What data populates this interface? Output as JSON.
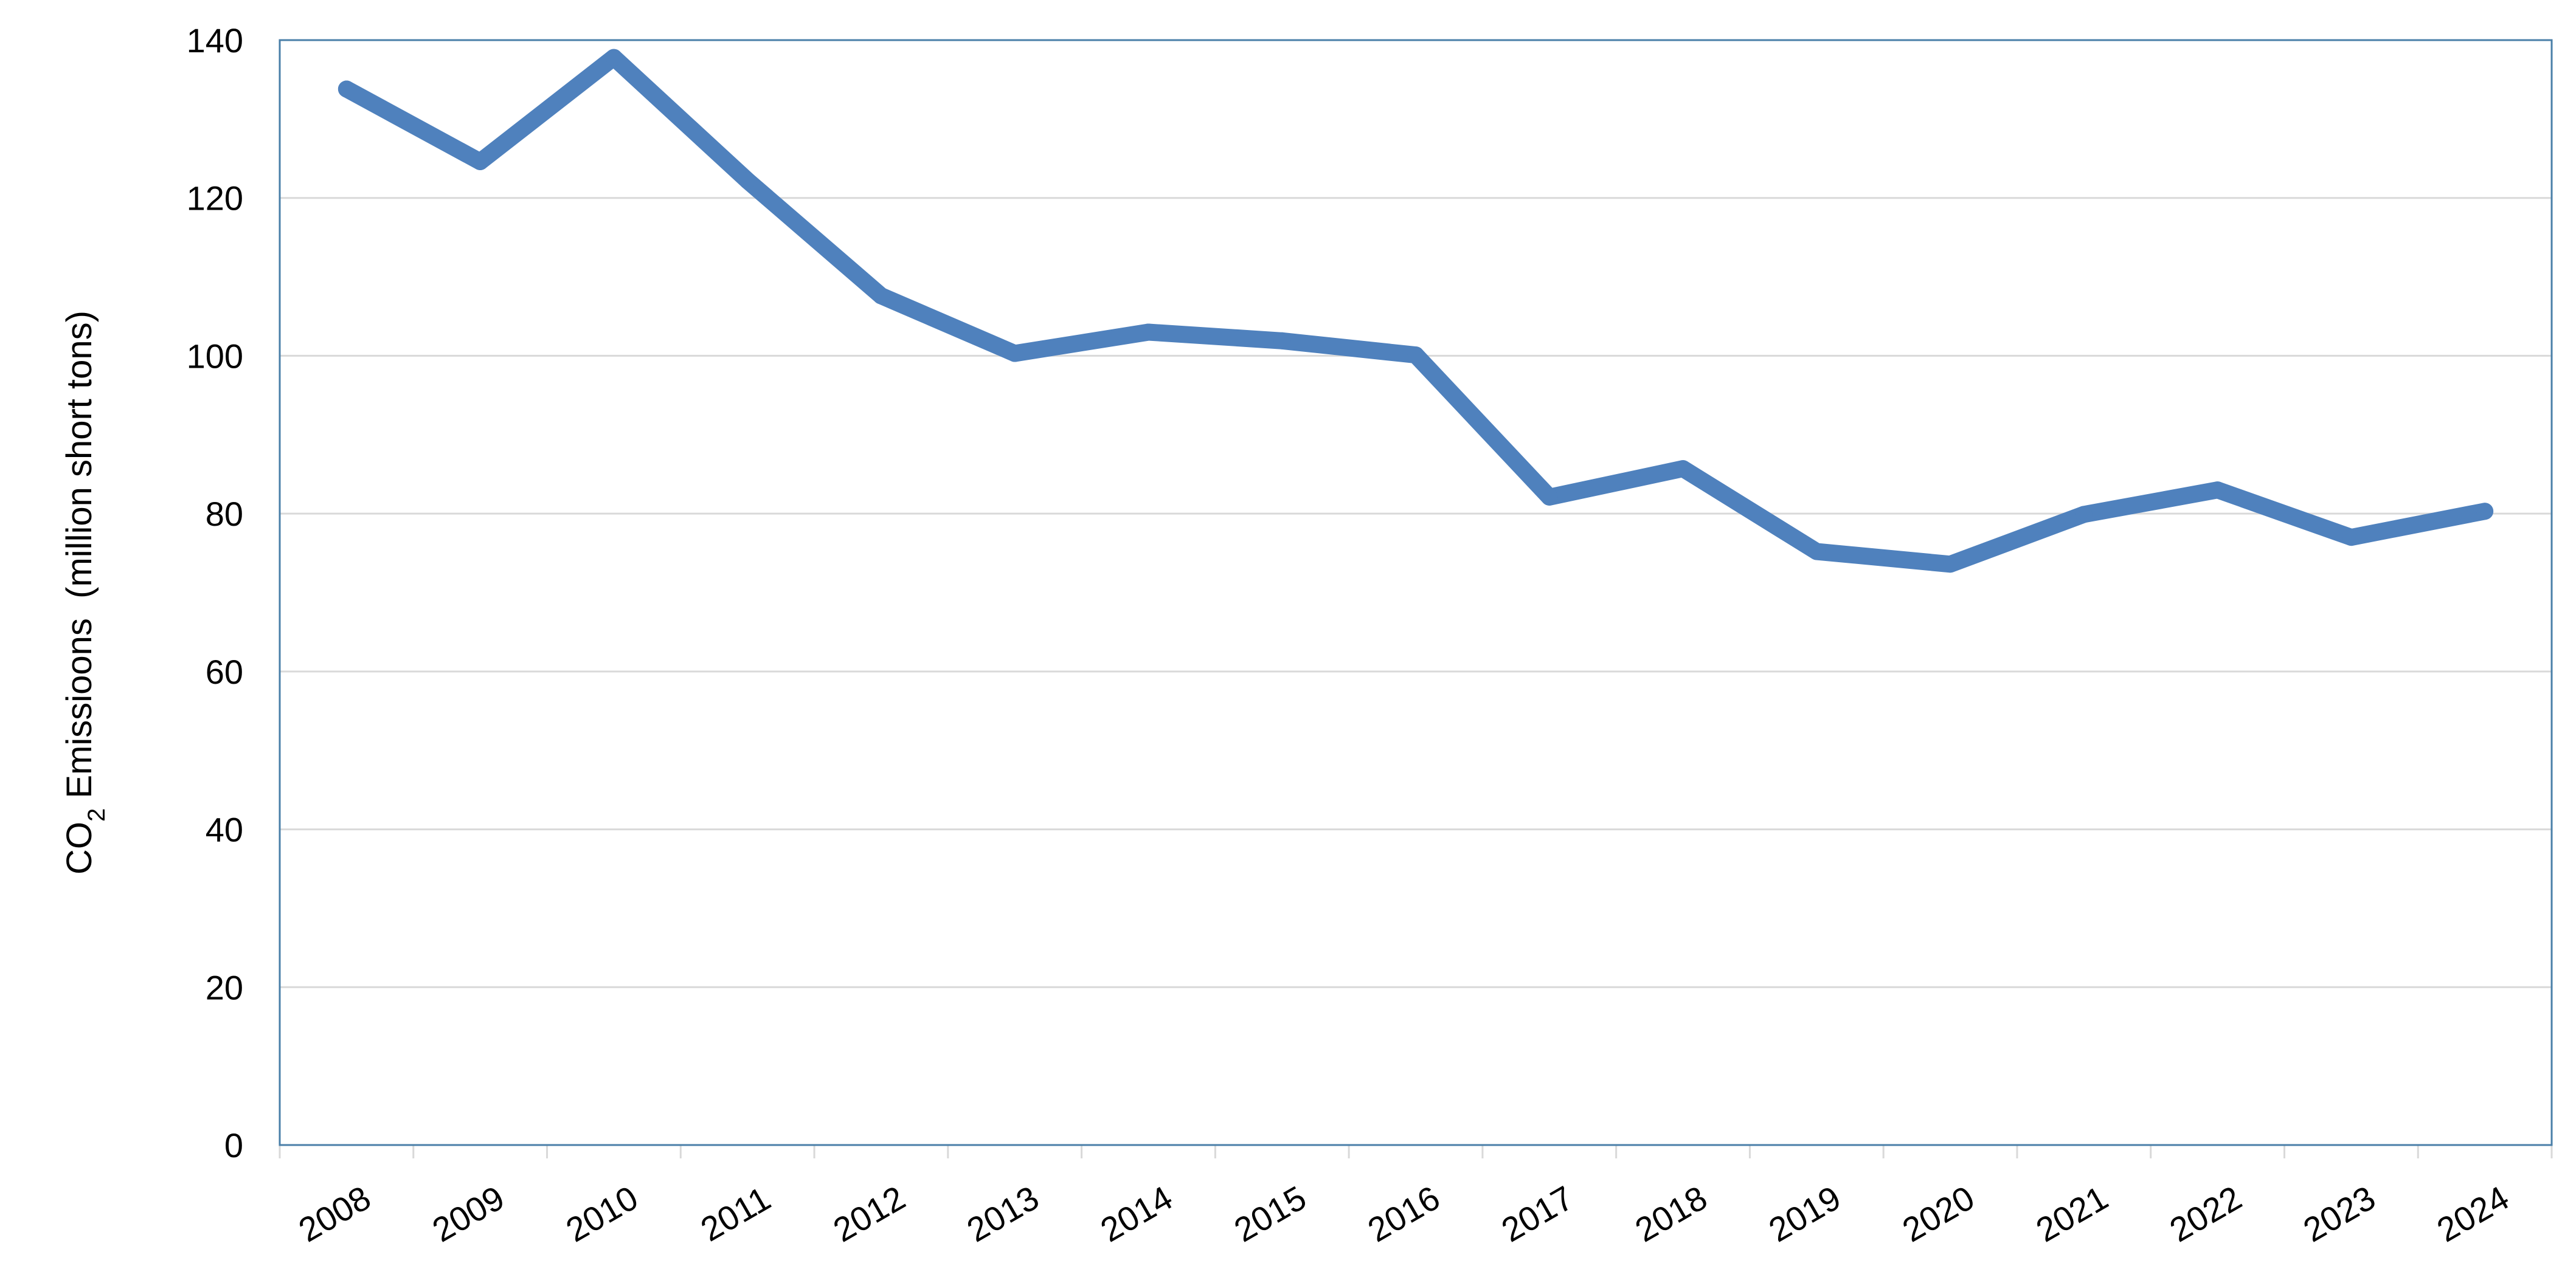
{
  "chart_data": {
    "type": "line",
    "title": "",
    "xlabel": "",
    "ylabel": {
      "prefix": "CO",
      "subscript": "2",
      "suffix": " Emissioons  (million short tons)"
    },
    "x": [
      "2008",
      "2009",
      "2010",
      "2011",
      "2012",
      "2013",
      "2014",
      "2015",
      "2016",
      "2017",
      "2018",
      "2019",
      "2020",
      "2021",
      "2022",
      "2023",
      "2024"
    ],
    "series": [
      {
        "color": "#4f81bd",
        "values": [
          133.8,
          124.6,
          137.8,
          122.2,
          107.6,
          100.3,
          103.0,
          101.9,
          100.1,
          82.1,
          85.7,
          75.2,
          73.6,
          79.9,
          83.0,
          77.0,
          80.3
        ]
      }
    ],
    "ylim": [
      0,
      140
    ],
    "yticks": [
      0,
      20,
      40,
      60,
      80,
      100,
      120,
      140
    ],
    "grid": true,
    "legend": "none"
  }
}
